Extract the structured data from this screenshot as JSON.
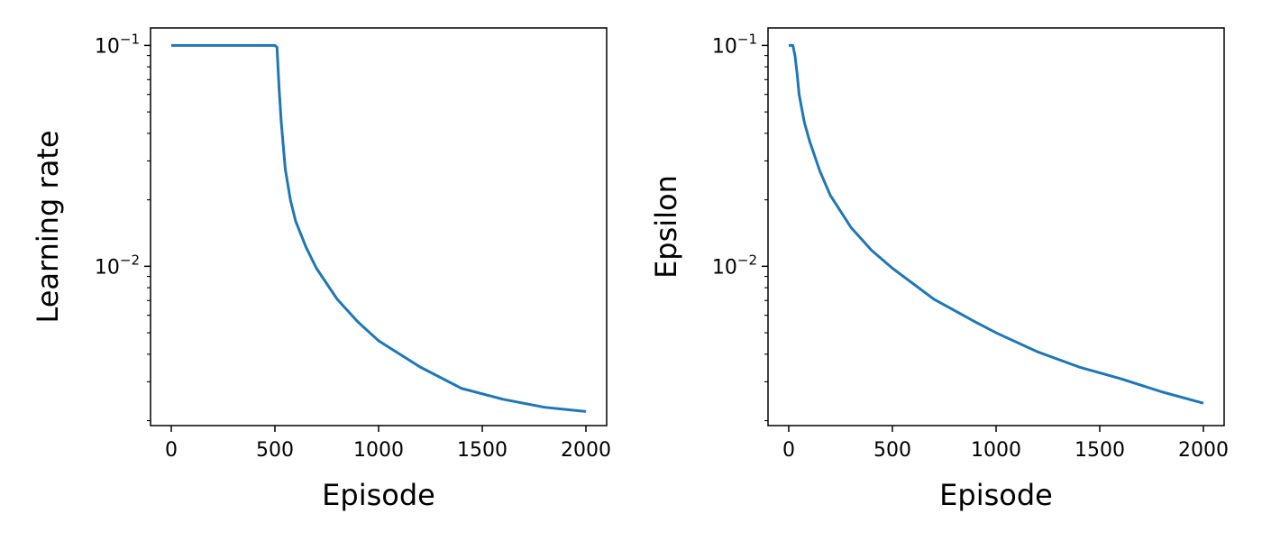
{
  "chart_data": [
    {
      "type": "line",
      "xlabel": "Episode",
      "ylabel": "Learning rate",
      "yscale": "log",
      "xlim": [
        -100,
        2100
      ],
      "ylim": [
        0.0019,
        0.12
      ],
      "xticks": [
        0,
        500,
        1000,
        1500,
        2000
      ],
      "xtick_labels": [
        "0",
        "500",
        "1000",
        "1500",
        "2000"
      ],
      "yticks": [
        0.01,
        0.1
      ],
      "ytick_labels": [
        {
          "base": "10",
          "exp": "−2"
        },
        {
          "base": "10",
          "exp": "−1"
        }
      ],
      "grid": false,
      "color": "#1f77b4",
      "series": [
        {
          "x": [
            0,
            100,
            200,
            300,
            400,
            500,
            510,
            520,
            530,
            550,
            575,
            600,
            650,
            700,
            800,
            900,
            1000,
            1200,
            1400,
            1600,
            1800,
            2000
          ],
          "y": [
            0.1,
            0.1,
            0.1,
            0.1,
            0.1,
            0.1,
            0.098,
            0.0641,
            0.0455,
            0.0275,
            0.0199,
            0.016,
            0.0122,
            0.0098,
            0.0071,
            0.0056,
            0.0046,
            0.0035,
            0.0028,
            0.0025,
            0.0023,
            0.0022
          ]
        }
      ]
    },
    {
      "type": "line",
      "xlabel": "Episode",
      "ylabel": "Epsilon",
      "yscale": "log",
      "xlim": [
        -100,
        2100
      ],
      "ylim": [
        0.0019,
        0.12
      ],
      "xticks": [
        0,
        500,
        1000,
        1500,
        2000
      ],
      "xtick_labels": [
        "0",
        "500",
        "1000",
        "1500",
        "2000"
      ],
      "yticks": [
        0.01,
        0.1
      ],
      "ytick_labels": [
        {
          "base": "10",
          "exp": "−2"
        },
        {
          "base": "10",
          "exp": "−1"
        }
      ],
      "grid": false,
      "color": "#1f77b4",
      "series": [
        {
          "x": [
            0,
            15,
            20,
            30,
            40,
            50,
            75,
            100,
            150,
            200,
            300,
            400,
            500,
            700,
            900,
            1000,
            1200,
            1400,
            1600,
            1800,
            2000
          ],
          "y": [
            0.1,
            0.1,
            0.1,
            0.09,
            0.075,
            0.06,
            0.045,
            0.037,
            0.027,
            0.021,
            0.015,
            0.0118,
            0.0098,
            0.0071,
            0.0056,
            0.005,
            0.0041,
            0.0035,
            0.0031,
            0.0027,
            0.0024
          ]
        }
      ]
    }
  ]
}
